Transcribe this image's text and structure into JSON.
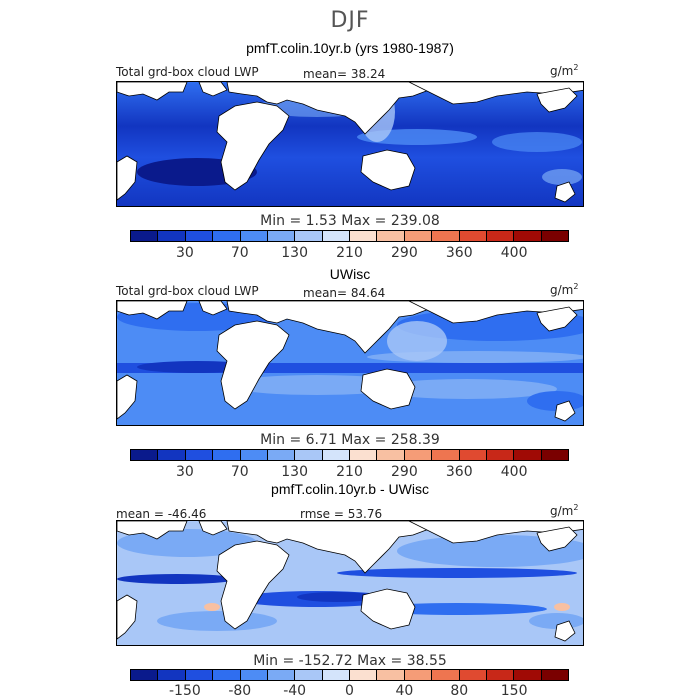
{
  "season": "DJF",
  "panels": [
    {
      "heading": "pmfT.colin.10yr.b (yrs 1980-1987)",
      "left_label": "Total grd-box cloud LWP",
      "mid_label": "mean=  38.24",
      "units": "g/m",
      "units_exp": "2",
      "minmax": "Min =    1.53  Max =  239.08",
      "tick_labels": [
        "30",
        "70",
        "130",
        "210",
        "290",
        "360",
        "400"
      ],
      "colors": [
        "#0a1a8c",
        "#1235c0",
        "#1f4fe0",
        "#2f6ef0",
        "#4d8cf5",
        "#7aaaf5",
        "#a9c7f7",
        "#d4e4fb",
        "#fbe0d0",
        "#f8c0a2",
        "#f59c77",
        "#ee7550",
        "#e04a30",
        "#c82818",
        "#a00a05",
        "#7a0000"
      ]
    },
    {
      "heading": "UWisc",
      "left_label": "Total grd-box cloud LWP",
      "mid_label": "mean=  84.64",
      "units": "g/m",
      "units_exp": "2",
      "minmax": "Min =    6.71  Max =  258.39",
      "tick_labels": [
        "30",
        "70",
        "130",
        "210",
        "290",
        "360",
        "400"
      ],
      "colors": [
        "#0a1a8c",
        "#1235c0",
        "#1f4fe0",
        "#2f6ef0",
        "#4d8cf5",
        "#7aaaf5",
        "#a9c7f7",
        "#d4e4fb",
        "#fbe0d0",
        "#f8c0a2",
        "#f59c77",
        "#ee7550",
        "#e04a30",
        "#c82818",
        "#a00a05",
        "#7a0000"
      ]
    },
    {
      "heading": "pmfT.colin.10yr.b - UWisc",
      "left_label": "mean = -46.46",
      "mid_label": "rmse =  53.76",
      "units": "g/m",
      "units_exp": "2",
      "minmax": "Min = -152.72  Max =  38.55",
      "tick_labels": [
        "-150",
        "-80",
        "-40",
        "0",
        "40",
        "80",
        "150"
      ],
      "colors": [
        "#0a1a8c",
        "#1235c0",
        "#1f4fe0",
        "#2f6ef0",
        "#4d8cf5",
        "#7aaaf5",
        "#a9c7f7",
        "#d4e4fb",
        "#fbe0d0",
        "#f8c0a2",
        "#f59c77",
        "#ee7550",
        "#e04a30",
        "#c82818",
        "#a00a05",
        "#7a0000"
      ]
    }
  ]
}
